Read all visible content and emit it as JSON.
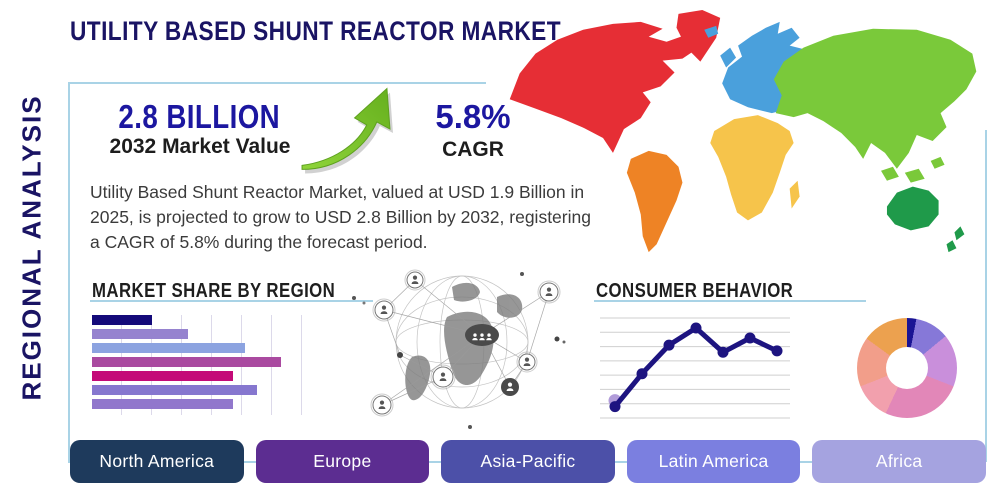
{
  "title": "UTILITY BASED SHUNT REACTOR MARKET",
  "side_label": "REGIONAL ANALYSIS",
  "stats": {
    "market_value": "2.8 BILLION",
    "market_value_caption": "2032 Market Value",
    "cagr_value": "5.8%",
    "cagr_caption": "CAGR"
  },
  "description": "Utility Based Shunt Reactor Market, valued at USD 1.9 Billion in 2025, is projected to grow to USD 2.8 Billion by 2032, registering a CAGR of 5.8% during the forecast period.",
  "sections": {
    "market_share": "MARKET SHARE BY REGION",
    "consumer_behavior": "CONSUMER BEHAVIOR"
  },
  "region_buttons": [
    {
      "label": "North America",
      "color": "#1e3a5c"
    },
    {
      "label": "Europe",
      "color": "#5c2d91"
    },
    {
      "label": "Asia-Pacific",
      "color": "#4c50a8"
    },
    {
      "label": "Latin America",
      "color": "#7b7fe0"
    },
    {
      "label": "Africa",
      "color": "#a5a3e0"
    }
  ],
  "chart_data": [
    {
      "type": "bar",
      "orientation": "horizontal",
      "title": "MARKET SHARE BY REGION",
      "values": [
        20,
        32,
        51,
        63,
        47,
        55,
        47
      ],
      "bar_colors": [
        "#140a7a",
        "#9683cf",
        "#8ca3e0",
        "#aa4aa0",
        "#c40a78",
        "#8677cf",
        "#9177cc"
      ],
      "xlim": [
        0,
        73
      ],
      "x_gridline_interval": 10,
      "note": "category and axis labels not shown in source image"
    },
    {
      "type": "line",
      "title": "CONSUMER BEHAVIOR",
      "x": [
        1,
        2,
        3,
        4,
        5,
        6,
        7
      ],
      "values": [
        0.8,
        3.1,
        5.1,
        6.3,
        4.6,
        5.6,
        4.7
      ],
      "ylim": [
        0,
        7
      ],
      "gridlines": 8,
      "line_color": "#1d1480",
      "marker_color": "#1d1480",
      "start_marker_color": "#b19cd9",
      "note": "axis tick labels not shown in source image"
    },
    {
      "type": "donut",
      "values": [
        3,
        11,
        17,
        26,
        12,
        16,
        15
      ],
      "colors": [
        "#1a1494",
        "#8678d8",
        "#c98fdb",
        "#e287b8",
        "#f2a0ad",
        "#f29e8a",
        "#eca14f"
      ],
      "start_angle_deg": 0,
      "note": "segment labels not shown in source image"
    }
  ],
  "world_map": {
    "regions": [
      {
        "name": "north-america",
        "color": "#e62e35"
      },
      {
        "name": "south-america",
        "color": "#ee8325"
      },
      {
        "name": "europe",
        "color": "#4aa0dc"
      },
      {
        "name": "africa",
        "color": "#f6c44b"
      },
      {
        "name": "asia",
        "color": "#7ac93a"
      },
      {
        "name": "australia",
        "color": "#1f9a4a"
      }
    ]
  },
  "colors": {
    "title_navy": "#1a1464",
    "stat_blue": "#1c17a0",
    "accent_line": "#a9d3e6",
    "arrow_green": "#76c12e"
  }
}
